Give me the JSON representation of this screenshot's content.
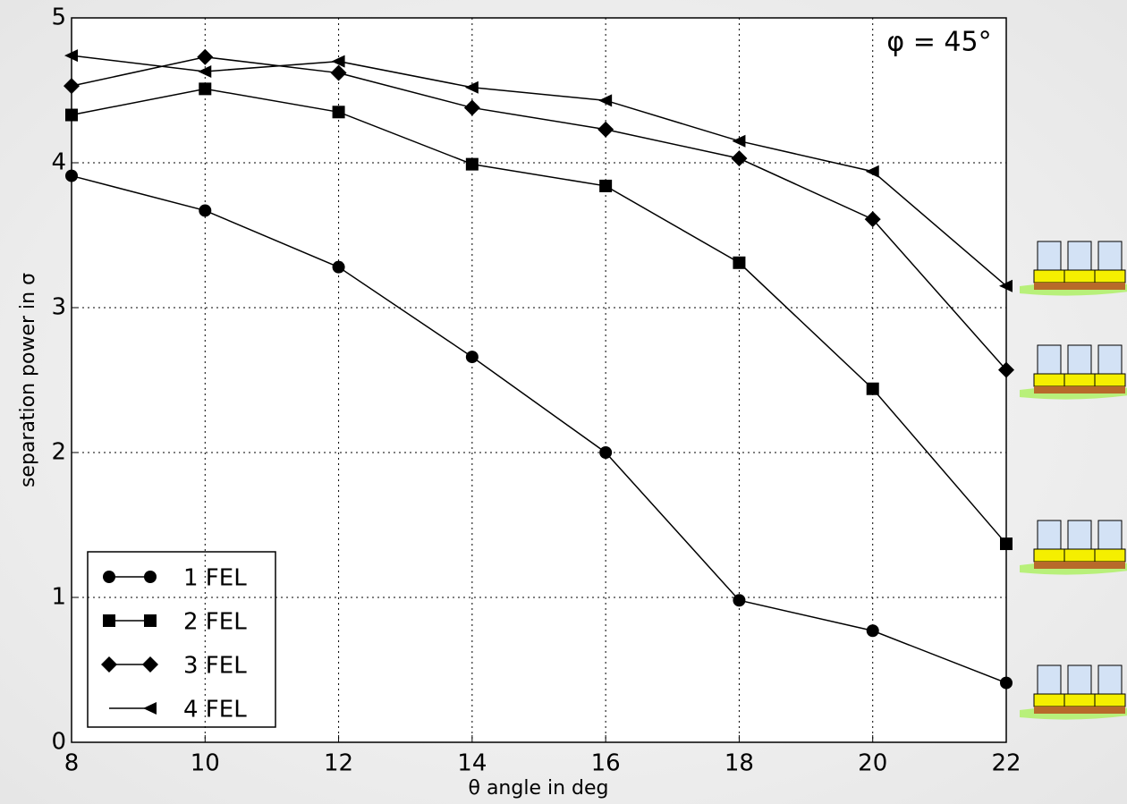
{
  "chart_data": {
    "type": "line",
    "annotation": "φ = 45°",
    "x_label": "θ angle in deg",
    "y_label": "separation power in σ",
    "x": [
      8,
      10,
      12,
      14,
      16,
      18,
      20,
      22
    ],
    "series": [
      {
        "name": "1 FEL",
        "color": "#000000",
        "marker": "circle",
        "values": [
          3.91,
          3.67,
          3.28,
          2.66,
          2.0,
          0.98,
          0.77,
          0.41
        ]
      },
      {
        "name": "2 FEL",
        "color": "#000000",
        "marker": "square",
        "values": [
          4.33,
          4.51,
          4.35,
          3.99,
          3.84,
          3.31,
          2.44,
          1.37
        ]
      },
      {
        "name": "3 FEL",
        "color": "#000000",
        "marker": "diamond",
        "values": [
          4.53,
          4.73,
          4.62,
          4.38,
          4.23,
          4.03,
          3.61,
          2.57
        ]
      },
      {
        "name": "4 FEL",
        "color": "#000000",
        "marker": "triangle-left",
        "values": [
          4.74,
          4.63,
          4.7,
          4.52,
          4.43,
          4.15,
          3.94,
          3.15
        ]
      }
    ],
    "xlim": [
      8,
      22
    ],
    "ylim": [
      0,
      5
    ],
    "xticks": [
      8,
      10,
      12,
      14,
      16,
      18,
      20,
      22
    ],
    "yticks": [
      0,
      1,
      2,
      3,
      4,
      5
    ],
    "grid": true,
    "legend": "lower left"
  }
}
